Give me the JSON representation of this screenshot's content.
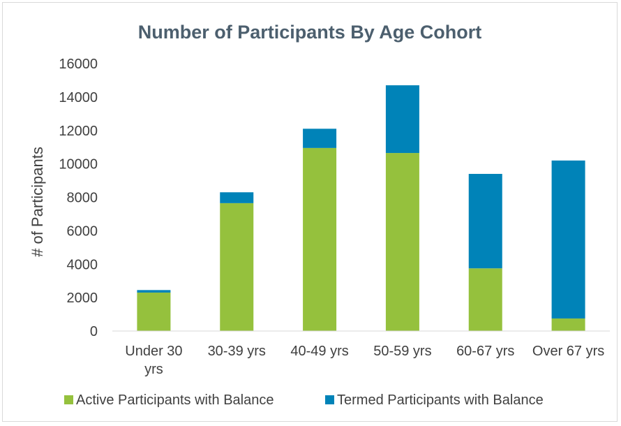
{
  "chart_data": {
    "type": "bar",
    "stacked": true,
    "title": "Number of Participants By Age Cohort",
    "xlabel": "",
    "ylabel": "# of Participants",
    "categories": [
      "Under 30 yrs",
      "30-39 yrs",
      "40-49 yrs",
      "50-59 yrs",
      "60-67 yrs",
      "Over 67 yrs"
    ],
    "category_lines": [
      [
        "Under 30",
        "yrs"
      ],
      [
        "30-39 yrs"
      ],
      [
        "40-49 yrs"
      ],
      [
        "50-59 yrs"
      ],
      [
        "60-67 yrs"
      ],
      [
        "Over 67 yrs"
      ]
    ],
    "series": [
      {
        "name": "Active Participants with Balance",
        "color": "#95c13d",
        "values": [
          2300,
          7650,
          10950,
          10650,
          3750,
          750
        ]
      },
      {
        "name": "Termed Participants with Balance",
        "color": "#0083b8",
        "values": [
          150,
          650,
          1150,
          4050,
          5650,
          9450
        ]
      }
    ],
    "ylim": [
      0,
      16000
    ],
    "yticks": [
      0,
      2000,
      4000,
      6000,
      8000,
      10000,
      12000,
      14000,
      16000
    ],
    "grid": false,
    "legend_position": "bottom",
    "colors": {
      "title": "#4c5f6e",
      "axis_text": "#404040",
      "axis_line": "#d9d9d9"
    }
  }
}
